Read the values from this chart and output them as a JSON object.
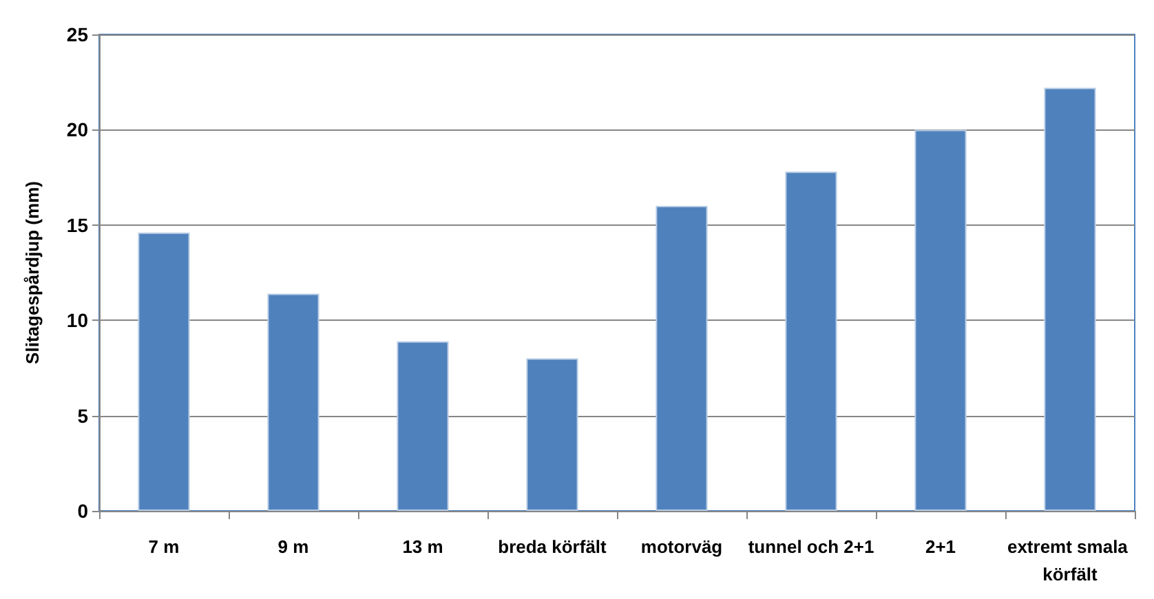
{
  "chart_data": {
    "type": "bar",
    "ylabel": "Slitagespårdjup (mm)",
    "categories": [
      "7 m",
      "9 m",
      "13 m",
      "breda körfält",
      "motorväg",
      "tunnel och 2+1",
      "2+1",
      "extremt smala körfält"
    ],
    "values": [
      14.6,
      11.4,
      8.9,
      8.0,
      16.0,
      17.8,
      20.0,
      22.2
    ],
    "color": "#4f81bd",
    "ylim": [
      0,
      25
    ],
    "yticks": [
      0,
      5,
      10,
      15,
      20,
      25
    ],
    "grid": "y"
  }
}
